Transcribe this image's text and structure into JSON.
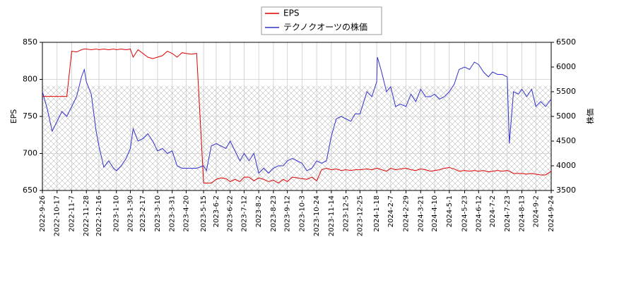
{
  "chart_data": {
    "type": "line",
    "x": [
      "2022-09-26",
      "2022-10-03",
      "2022-10-10",
      "2022-10-17",
      "2022-10-24",
      "2022-10-31",
      "2022-11-07",
      "2022-11-14",
      "2022-11-21",
      "2022-11-25",
      "2022-11-28",
      "2022-12-05",
      "2022-12-12",
      "2022-12-16",
      "2022-12-23",
      "2022-12-30",
      "2023-01-06",
      "2023-01-10",
      "2023-01-17",
      "2023-01-24",
      "2023-01-30",
      "2023-02-03",
      "2023-02-10",
      "2023-02-17",
      "2023-02-24",
      "2023-03-03",
      "2023-03-10",
      "2023-03-17",
      "2023-03-24",
      "2023-03-31",
      "2023-04-07",
      "2023-04-14",
      "2023-04-20",
      "2023-04-28",
      "2023-05-05",
      "2023-05-15",
      "2023-05-19",
      "2023-05-26",
      "2023-06-02",
      "2023-06-09",
      "2023-06-16",
      "2023-06-22",
      "2023-06-29",
      "2023-07-06",
      "2023-07-12",
      "2023-07-19",
      "2023-07-26",
      "2023-08-02",
      "2023-08-09",
      "2023-08-16",
      "2023-08-23",
      "2023-08-30",
      "2023-09-06",
      "2023-09-12",
      "2023-09-19",
      "2023-09-26",
      "2023-10-03",
      "2023-10-10",
      "2023-10-17",
      "2023-10-24",
      "2023-10-31",
      "2023-11-07",
      "2023-11-14",
      "2023-11-21",
      "2023-11-28",
      "2023-12-05",
      "2023-12-12",
      "2023-12-18",
      "2023-12-25",
      "2024-01-04",
      "2024-01-11",
      "2024-01-18",
      "2024-01-19",
      "2024-01-25",
      "2024-02-01",
      "2024-02-07",
      "2024-02-14",
      "2024-02-21",
      "2024-02-29",
      "2024-03-07",
      "2024-03-14",
      "2024-03-21",
      "2024-03-28",
      "2024-04-04",
      "2024-04-10",
      "2024-04-17",
      "2024-04-24",
      "2024-05-01",
      "2024-05-08",
      "2024-05-15",
      "2024-05-23",
      "2024-05-30",
      "2024-06-06",
      "2024-06-12",
      "2024-06-19",
      "2024-06-26",
      "2024-07-02",
      "2024-07-09",
      "2024-07-16",
      "2024-07-23",
      "2024-07-26",
      "2024-08-01",
      "2024-08-08",
      "2024-08-13",
      "2024-08-20",
      "2024-08-27",
      "2024-09-02",
      "2024-09-09",
      "2024-09-16",
      "2024-09-24"
    ],
    "series": [
      {
        "name": "EPS",
        "color": "#dd0000",
        "axis": "y",
        "values": [
          777,
          777,
          777,
          777,
          777,
          777,
          838,
          837,
          840,
          841,
          841,
          840,
          841,
          840,
          841,
          840,
          841,
          840,
          841,
          840,
          841,
          830,
          840,
          835,
          830,
          828,
          830,
          832,
          838,
          835,
          830,
          836,
          835,
          834,
          835,
          660,
          660,
          660,
          665,
          667,
          666,
          662,
          665,
          662,
          668,
          668,
          663,
          667,
          665,
          662,
          664,
          660,
          665,
          662,
          668,
          667,
          666,
          665,
          668,
          663,
          678,
          680,
          678,
          679,
          677,
          678,
          677,
          678,
          678,
          679,
          678,
          680,
          680,
          678,
          676,
          680,
          678,
          679,
          680,
          678,
          677,
          679,
          678,
          676,
          677,
          678,
          680,
          681,
          679,
          676,
          677,
          676,
          677,
          676,
          677,
          675,
          676,
          677,
          676,
          677,
          676,
          673,
          673,
          673,
          672,
          673,
          672,
          671,
          671,
          676
        ]
      },
      {
        "name": "テクノクオーツの株価",
        "color": "#3333cc",
        "axis": "y2",
        "values": [
          5500,
          5150,
          4700,
          4900,
          5100,
          5000,
          5200,
          5400,
          5800,
          5950,
          5700,
          5450,
          4700,
          4400,
          3970,
          4100,
          3950,
          3900,
          4000,
          4150,
          4350,
          4750,
          4500,
          4550,
          4650,
          4500,
          4300,
          4350,
          4250,
          4300,
          4000,
          3950,
          3950,
          3950,
          3950,
          4000,
          3900,
          4400,
          4450,
          4400,
          4350,
          4500,
          4300,
          4100,
          4250,
          4100,
          4250,
          3850,
          3950,
          3850,
          3950,
          4000,
          4000,
          4100,
          4150,
          4100,
          4050,
          3900,
          3950,
          4100,
          4050,
          4100,
          4600,
          4950,
          5000,
          4950,
          4900,
          5050,
          5050,
          5500,
          5400,
          5700,
          6200,
          5900,
          5500,
          5600,
          5200,
          5250,
          5200,
          5450,
          5300,
          5550,
          5400,
          5400,
          5450,
          5350,
          5400,
          5500,
          5650,
          5950,
          6000,
          5950,
          6100,
          6050,
          5900,
          5800,
          5900,
          5850,
          5850,
          5800,
          4450,
          5500,
          5450,
          5550,
          5400,
          5550,
          5200,
          5300,
          5200,
          5350
        ]
      }
    ],
    "xlim": [
      "2022-09-26",
      "2024-09-24"
    ],
    "xticks": [
      {
        "value": "2022-09-26",
        "label": "2022-9-26"
      },
      {
        "value": "2022-10-17",
        "label": "2022-10-17"
      },
      {
        "value": "2022-11-07",
        "label": "2022-11-7"
      },
      {
        "value": "2022-11-28",
        "label": "2022-11-28"
      },
      {
        "value": "2022-12-16",
        "label": "2022-12-16"
      },
      {
        "value": "2023-01-10",
        "label": "2023-1-10"
      },
      {
        "value": "2023-01-30",
        "label": "2023-1-30"
      },
      {
        "value": "2023-02-17",
        "label": "2023-2-17"
      },
      {
        "value": "2023-03-10",
        "label": "2023-3-10"
      },
      {
        "value": "2023-03-31",
        "label": "2023-3-31"
      },
      {
        "value": "2023-04-20",
        "label": "2023-4-20"
      },
      {
        "value": "2023-05-15",
        "label": "2023-5-15"
      },
      {
        "value": "2023-06-02",
        "label": "2023-6-2"
      },
      {
        "value": "2023-06-22",
        "label": "2023-6-22"
      },
      {
        "value": "2023-07-12",
        "label": "2023-7-12"
      },
      {
        "value": "2023-08-02",
        "label": "2023-8-2"
      },
      {
        "value": "2023-08-23",
        "label": "2023-8-23"
      },
      {
        "value": "2023-09-12",
        "label": "2023-9-12"
      },
      {
        "value": "2023-10-03",
        "label": "2023-10-3"
      },
      {
        "value": "2023-10-24",
        "label": "2023-10-24"
      },
      {
        "value": "2023-11-14",
        "label": "2023-11-14"
      },
      {
        "value": "2023-12-05",
        "label": "2023-12-5"
      },
      {
        "value": "2023-12-25",
        "label": "2023-12-25"
      },
      {
        "value": "2024-01-18",
        "label": "2024-1-18"
      },
      {
        "value": "2024-02-07",
        "label": "2024-2-7"
      },
      {
        "value": "2024-02-29",
        "label": "2024-2-29"
      },
      {
        "value": "2024-03-21",
        "label": "2024-3-21"
      },
      {
        "value": "2024-04-10",
        "label": "2024-4-10"
      },
      {
        "value": "2024-05-01",
        "label": "2024-5-1"
      },
      {
        "value": "2024-05-23",
        "label": "2024-5-23"
      },
      {
        "value": "2024-06-12",
        "label": "2024-6-12"
      },
      {
        "value": "2024-07-02",
        "label": "2024-7-2"
      },
      {
        "value": "2024-07-23",
        "label": "2024-7-23"
      },
      {
        "value": "2024-08-13",
        "label": "2024-8-13"
      },
      {
        "value": "2024-09-02",
        "label": "2024-9-2"
      },
      {
        "value": "2024-09-24",
        "label": "2024-9-24"
      }
    ],
    "ylabel": "EPS",
    "ylim": [
      650,
      850
    ],
    "yticks": [
      650,
      700,
      750,
      800,
      850
    ],
    "y2label": "株価",
    "y2lim": [
      3500,
      6500
    ],
    "y2ticks": [
      3500,
      4000,
      4500,
      5000,
      5500,
      6000,
      6500
    ],
    "grid": true,
    "legend": "top"
  }
}
